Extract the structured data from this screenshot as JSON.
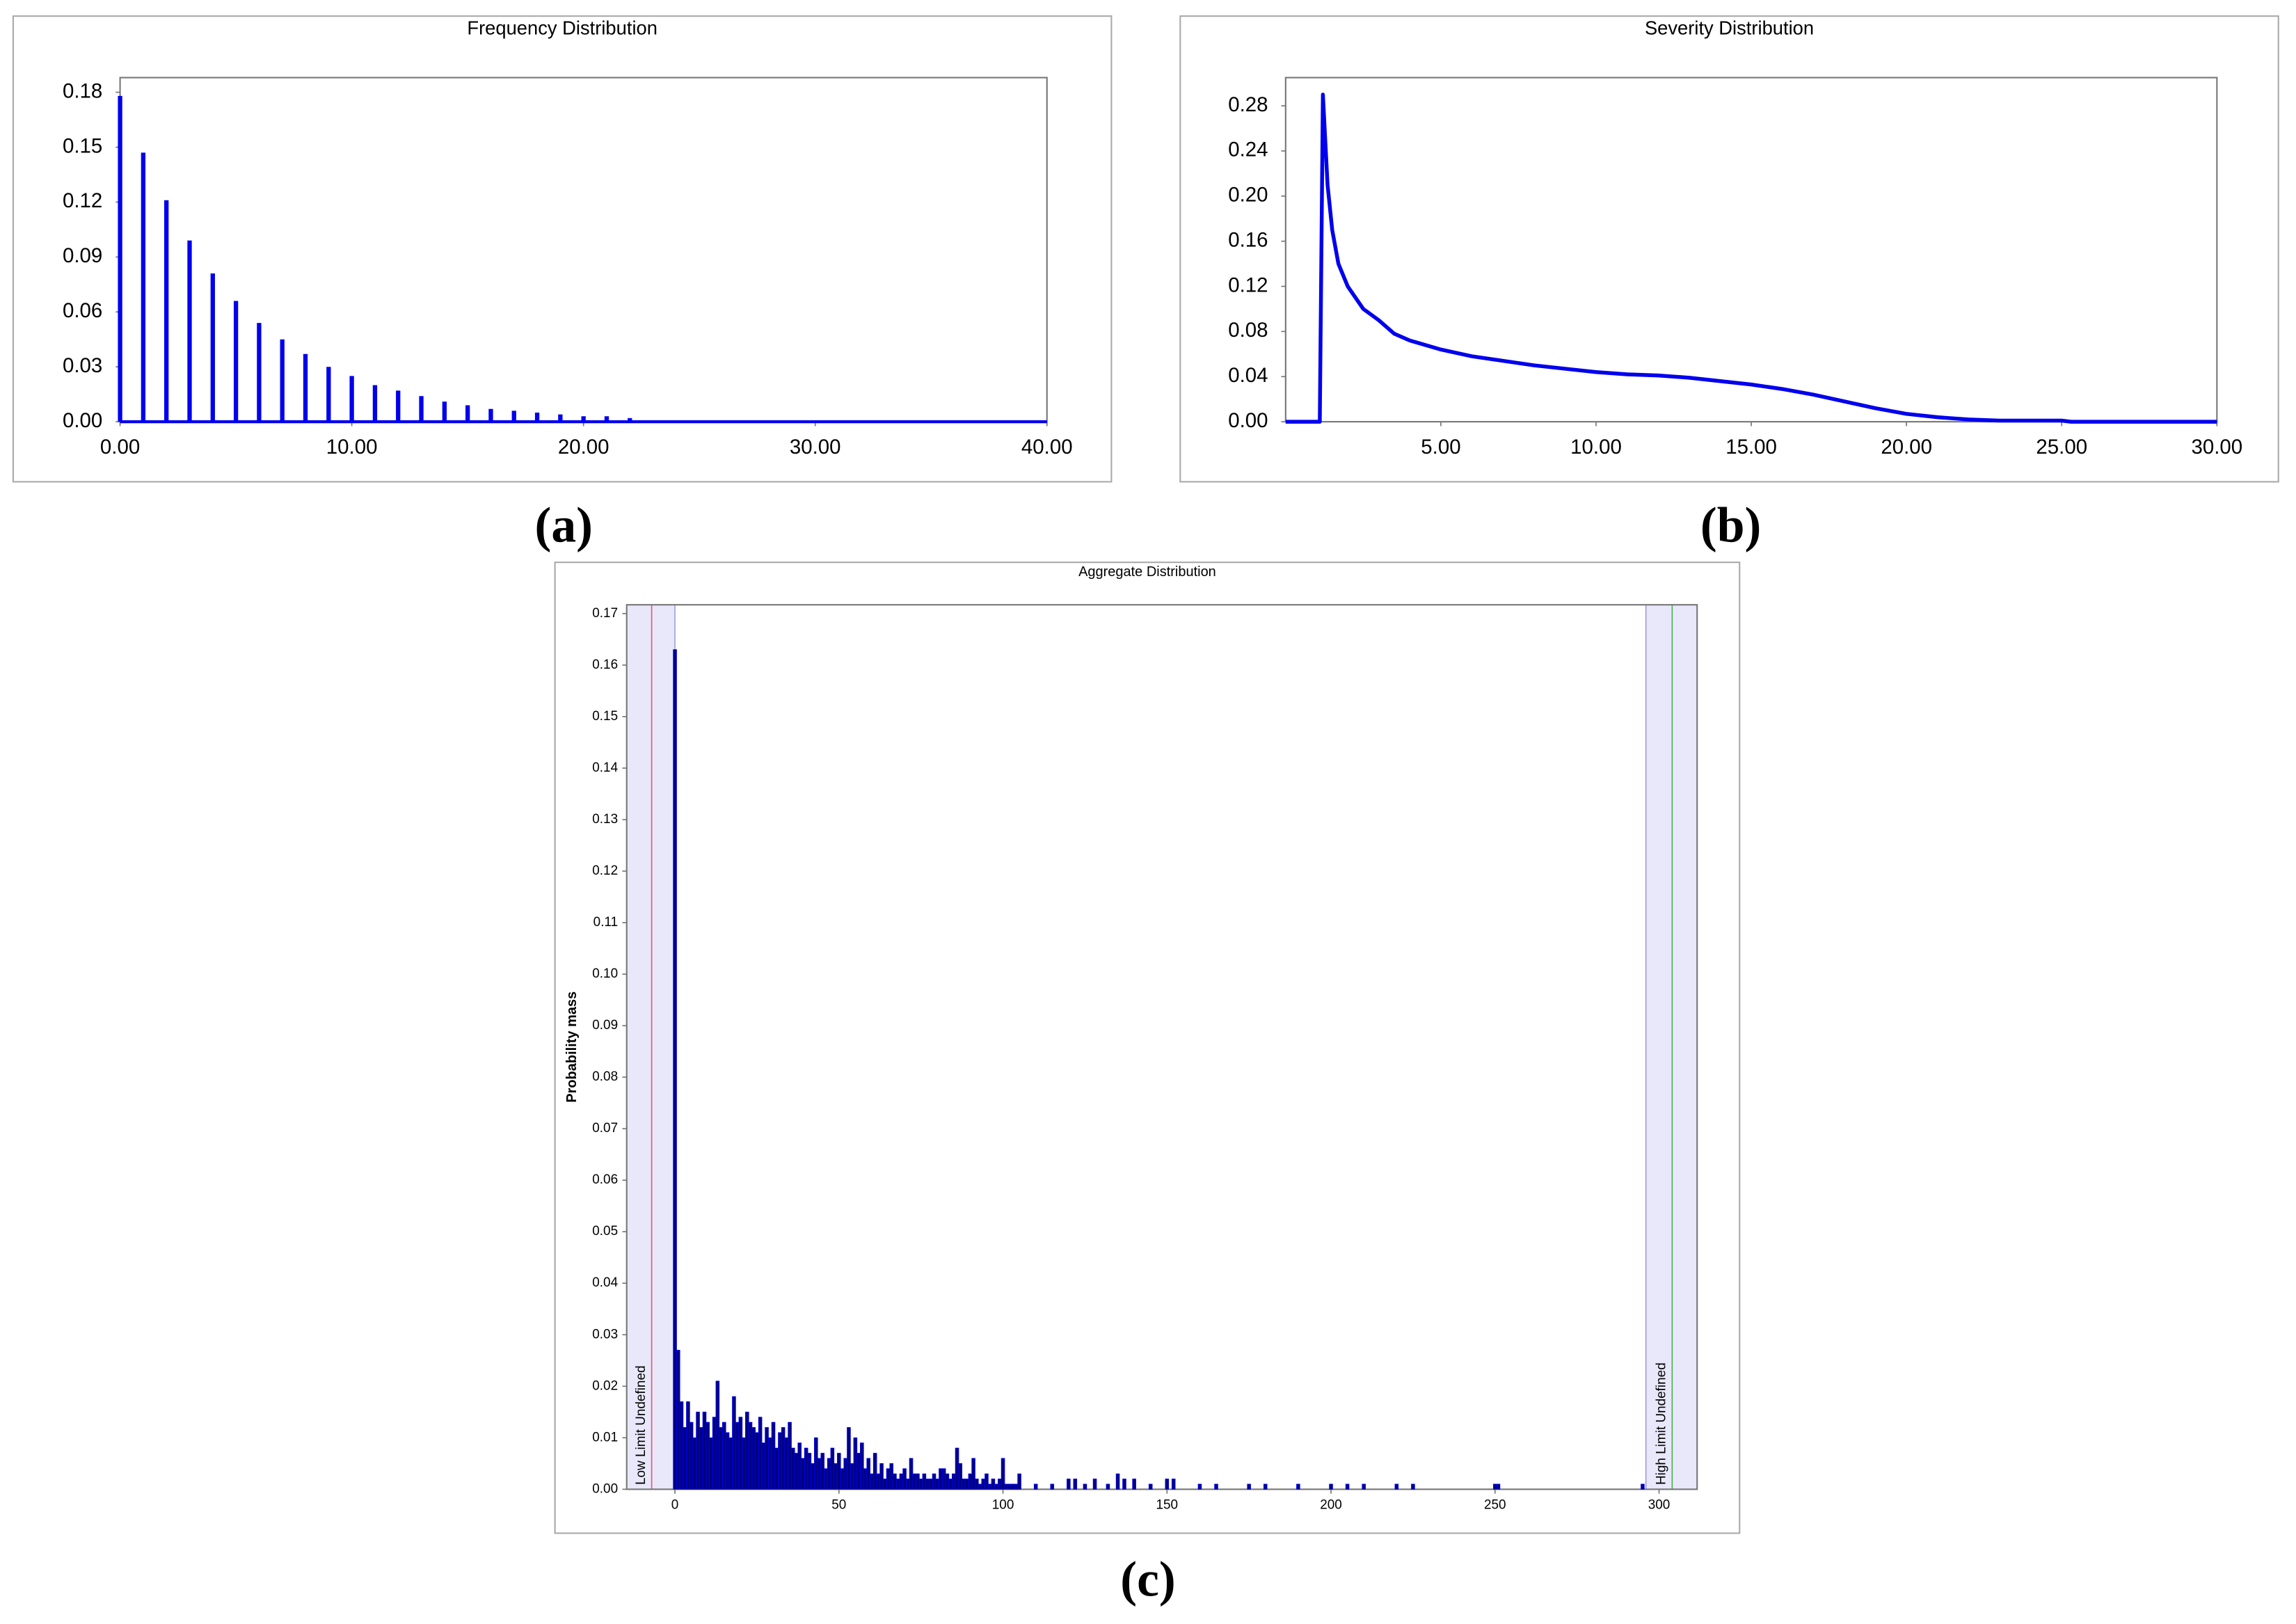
{
  "chart_data": [
    {
      "type": "stem",
      "title": "Frequency Distribution",
      "panel_label": "(a)",
      "color": "#0000ee",
      "x": [
        0,
        1,
        2,
        3,
        4,
        5,
        6,
        7,
        8,
        9,
        10,
        11,
        12,
        13,
        14,
        15,
        16,
        17,
        18,
        19,
        20,
        21,
        22
      ],
      "values": [
        0.178,
        0.147,
        0.121,
        0.099,
        0.081,
        0.066,
        0.054,
        0.045,
        0.037,
        0.03,
        0.025,
        0.02,
        0.017,
        0.014,
        0.011,
        0.009,
        0.007,
        0.006,
        0.005,
        0.004,
        0.003,
        0.003,
        0.002
      ],
      "xlim": [
        0,
        40
      ],
      "ylim": [
        0,
        0.188
      ],
      "xticks": [
        {
          "value": 0,
          "label": "0.00"
        },
        {
          "value": 10,
          "label": "10.00"
        },
        {
          "value": 20,
          "label": "20.00"
        },
        {
          "value": 30,
          "label": "30.00"
        },
        {
          "value": 40,
          "label": "40.00"
        }
      ],
      "yticks": [
        {
          "value": 0,
          "label": "0.00"
        },
        {
          "value": 0.03,
          "label": "0.03"
        },
        {
          "value": 0.06,
          "label": "0.06"
        },
        {
          "value": 0.09,
          "label": "0.09"
        },
        {
          "value": 0.12,
          "label": "0.12"
        },
        {
          "value": 0.15,
          "label": "0.15"
        },
        {
          "value": 0.18,
          "label": "0.18"
        }
      ]
    },
    {
      "type": "line",
      "title": "Severity Distribution",
      "panel_label": "(b)",
      "color": "#0000ee",
      "x": [
        0,
        1.1,
        1.2,
        1.35,
        1.5,
        1.7,
        2,
        2.5,
        3,
        3.5,
        4,
        5,
        6,
        7,
        8,
        9,
        10,
        11,
        12,
        13,
        14,
        15,
        16,
        17,
        18,
        19,
        20,
        21,
        22,
        23,
        25,
        25.3,
        30
      ],
      "values": [
        0,
        0,
        0.29,
        0.21,
        0.17,
        0.14,
        0.12,
        0.1,
        0.09,
        0.078,
        0.072,
        0.064,
        0.058,
        0.054,
        0.05,
        0.047,
        0.044,
        0.042,
        0.041,
        0.039,
        0.036,
        0.033,
        0.029,
        0.024,
        0.018,
        0.012,
        0.007,
        0.004,
        0.002,
        0.001,
        0.001,
        0,
        0
      ],
      "xlim": [
        0,
        30
      ],
      "ylim": [
        0,
        0.305
      ],
      "xticks": [
        {
          "value": 5,
          "label": "5.00"
        },
        {
          "value": 10,
          "label": "10.00"
        },
        {
          "value": 15,
          "label": "15.00"
        },
        {
          "value": 20,
          "label": "20.00"
        },
        {
          "value": 25,
          "label": "25.00"
        },
        {
          "value": 30,
          "label": "30.00"
        }
      ],
      "yticks": [
        {
          "value": 0,
          "label": "0.00"
        },
        {
          "value": 0.04,
          "label": "0.04"
        },
        {
          "value": 0.08,
          "label": "0.08"
        },
        {
          "value": 0.12,
          "label": "0.12"
        },
        {
          "value": 0.16,
          "label": "0.16"
        },
        {
          "value": 0.2,
          "label": "0.20"
        },
        {
          "value": 0.24,
          "label": "0.24"
        },
        {
          "value": 0.28,
          "label": "0.28"
        }
      ]
    },
    {
      "type": "bar",
      "title": "Aggregate Distribution",
      "panel_label": "(c)",
      "ylabel": "Probability mass",
      "color": "#000080",
      "edge_color": "#0000ff",
      "x": [
        0,
        1,
        2,
        3,
        4,
        5,
        6,
        7,
        8,
        9,
        10,
        11,
        12,
        13,
        14,
        15,
        16,
        17,
        18,
        19,
        20,
        21,
        22,
        23,
        24,
        25,
        26,
        27,
        28,
        29,
        30,
        31,
        32,
        33,
        34,
        35,
        36,
        37,
        38,
        39,
        40,
        41,
        42,
        43,
        44,
        45,
        46,
        47,
        48,
        49,
        50,
        51,
        52,
        53,
        54,
        55,
        56,
        57,
        58,
        59,
        60,
        61,
        62,
        63,
        64,
        65,
        66,
        67,
        68,
        69,
        70,
        71,
        72,
        73,
        74,
        75,
        76,
        77,
        78,
        79,
        80,
        81,
        82,
        83,
        84,
        85,
        86,
        87,
        88,
        89,
        90,
        91,
        92,
        93,
        94,
        95,
        96,
        97,
        98,
        99,
        100,
        101,
        102,
        103,
        104,
        105,
        110,
        115,
        120,
        122,
        125,
        128,
        132,
        135,
        137,
        140,
        145,
        150,
        152,
        160,
        165,
        175,
        180,
        190,
        200,
        205,
        210,
        220,
        225,
        250,
        251,
        295
      ],
      "values": [
        0.163,
        0.027,
        0.017,
        0.012,
        0.017,
        0.013,
        0.01,
        0.015,
        0.012,
        0.015,
        0.013,
        0.01,
        0.014,
        0.021,
        0.012,
        0.013,
        0.011,
        0.01,
        0.018,
        0.013,
        0.014,
        0.01,
        0.015,
        0.013,
        0.012,
        0.011,
        0.014,
        0.009,
        0.012,
        0.01,
        0.013,
        0.008,
        0.011,
        0.012,
        0.01,
        0.013,
        0.008,
        0.007,
        0.009,
        0.006,
        0.008,
        0.007,
        0.005,
        0.01,
        0.006,
        0.007,
        0.004,
        0.006,
        0.008,
        0.005,
        0.007,
        0.004,
        0.006,
        0.012,
        0.005,
        0.01,
        0.007,
        0.009,
        0.004,
        0.006,
        0.003,
        0.007,
        0.003,
        0.005,
        0.002,
        0.004,
        0.005,
        0.003,
        0.002,
        0.003,
        0.004,
        0.002,
        0.006,
        0.003,
        0.003,
        0.002,
        0.003,
        0.002,
        0.002,
        0.003,
        0.002,
        0.004,
        0.004,
        0.003,
        0.002,
        0.003,
        0.008,
        0.005,
        0.002,
        0.002,
        0.003,
        0.006,
        0.002,
        0.001,
        0.002,
        0.003,
        0.001,
        0.002,
        0.001,
        0.002,
        0.006,
        0.001,
        0.001,
        0.001,
        0.001,
        0.003,
        0.001,
        0.001,
        0.002,
        0.002,
        0.001,
        0.002,
        0.001,
        0.003,
        0.002,
        0.002,
        0.001,
        0.002,
        0.002,
        0.001,
        0.001,
        0.001,
        0.001,
        0.001,
        0.001,
        0.001,
        0.001,
        0.001,
        0.001,
        0.001,
        0.001,
        0.001
      ],
      "xlim": [
        -14.7,
        311.6
      ],
      "ylim": [
        0,
        0.1717
      ],
      "xticks": [
        0,
        50,
        100,
        150,
        200,
        250,
        300
      ],
      "yticks": [
        {
          "value": 0,
          "label": "0.00"
        },
        {
          "value": 0.01,
          "label": "0.01"
        },
        {
          "value": 0.02,
          "label": "0.02"
        },
        {
          "value": 0.03,
          "label": "0.03"
        },
        {
          "value": 0.04,
          "label": "0.04"
        },
        {
          "value": 0.05,
          "label": "0.05"
        },
        {
          "value": 0.06,
          "label": "0.06"
        },
        {
          "value": 0.07,
          "label": "0.07"
        },
        {
          "value": 0.08,
          "label": "0.08"
        },
        {
          "value": 0.09,
          "label": "0.09"
        },
        {
          "value": 0.1,
          "label": "0.10"
        },
        {
          "value": 0.11,
          "label": "0.11"
        },
        {
          "value": 0.12,
          "label": "0.12"
        },
        {
          "value": 0.13,
          "label": "0.13"
        },
        {
          "value": 0.14,
          "label": "0.14"
        },
        {
          "value": 0.15,
          "label": "0.15"
        },
        {
          "value": 0.16,
          "label": "0.16"
        },
        {
          "value": 0.17,
          "label": "0.17"
        }
      ],
      "shaded_ranges": [
        [
          -14.7,
          0
        ],
        [
          296,
          311.6
        ]
      ],
      "limits": [
        {
          "value": -7.1,
          "label": "Low Limit Undefined",
          "color": "#e06070"
        },
        {
          "value": 304,
          "label": "High Limit Undefined",
          "color": "#50b050"
        }
      ]
    }
  ]
}
